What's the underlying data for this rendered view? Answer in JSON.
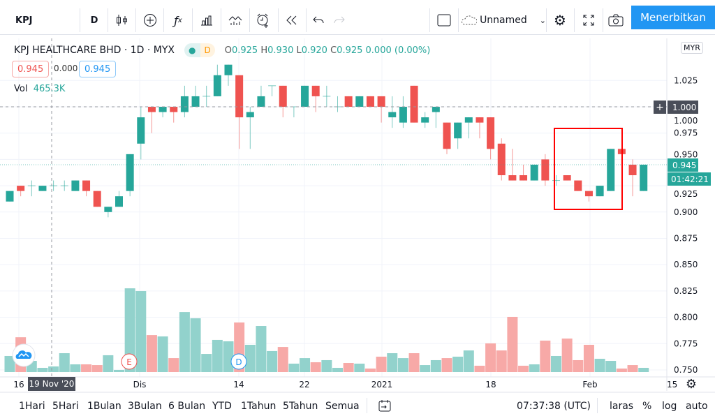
{
  "toolbar": {
    "symbol": "KPJ",
    "interval": "D",
    "icons": [
      "candlestick-icon",
      "add-compare-icon",
      "fx-indicators-icon",
      "bar-chart-icon",
      "templates-icon",
      "alert-icon",
      "replay-icon",
      "undo-icon",
      "redo-icon"
    ],
    "layout_icon": "square-icon",
    "layout_name": "Unnamed",
    "publish": "Menerbitkan"
  },
  "legend": {
    "title": "KPJ HEALTHCARE BHD · 1D · MYX",
    "status_letter": "D",
    "o_label": "O",
    "o": "0.925",
    "h_label": "H",
    "h": "0.930",
    "l_label": "L",
    "l": "0.920",
    "c_label": "C",
    "c": "0.925",
    "change": "0.000 (0.00%)",
    "bid": "0.945",
    "spread": "0.000",
    "ask": "0.945",
    "vol_label": "Vol",
    "vol": "465.3K"
  },
  "price_axis": {
    "currency": "MYR",
    "ticks": [
      "1.025",
      "1.000",
      "0.975",
      "0.950",
      "0.925",
      "0.900",
      "0.875",
      "0.850",
      "0.825",
      "0.800",
      "0.775",
      "0.750"
    ],
    "crosshair_price": "1.000",
    "last_price": "0.945",
    "countdown": "01:42:21"
  },
  "time_axis": {
    "ticks": [
      "16",
      "Dis",
      "14",
      "22",
      "2021",
      "18",
      "Feb",
      "15"
    ],
    "crosshair_date": "19 Nov '20"
  },
  "markers": {
    "earnings": "E",
    "dividend": "D"
  },
  "bottom": {
    "ranges": [
      "1Hari",
      "5Hari",
      "1Bulan",
      "3Bulan",
      "6 Bulan",
      "YTD",
      "1Tahun",
      "5Tahun",
      "Semua"
    ],
    "clock": "07:37:38 (UTC)",
    "options": [
      "laras",
      "%",
      "log",
      "auto"
    ]
  },
  "colors": {
    "up": "#26a69a",
    "down": "#ef5350",
    "up_vol": "#92d2cc",
    "down_vol": "#f7a9a7",
    "accent": "#2196f3",
    "highlight": "#ff0000"
  },
  "chart_data": {
    "type": "candlestick",
    "ylim": [
      0.745,
      1.04
    ],
    "ohlc": [
      [
        0.91,
        0.92,
        0.91,
        0.92
      ],
      [
        0.925,
        0.925,
        0.915,
        0.92
      ],
      [
        0.925,
        0.93,
        0.915,
        0.925
      ],
      [
        0.92,
        0.925,
        0.92,
        0.925
      ],
      [
        0.925,
        0.93,
        0.92,
        0.925
      ],
      [
        0.925,
        0.93,
        0.92,
        0.925
      ],
      [
        0.92,
        0.93,
        0.92,
        0.93
      ],
      [
        0.93,
        0.93,
        0.915,
        0.92
      ],
      [
        0.92,
        0.92,
        0.905,
        0.905
      ],
      [
        0.9,
        0.905,
        0.895,
        0.905
      ],
      [
        0.905,
        0.92,
        0.905,
        0.915
      ],
      [
        0.92,
        0.955,
        0.915,
        0.955
      ],
      [
        0.965,
        1.0,
        0.95,
        0.99
      ],
      [
        1.0,
        1.0,
        0.975,
        0.995
      ],
      [
        0.995,
        1.0,
        0.99,
        1.0
      ],
      [
        1.0,
        1.0,
        0.985,
        0.995
      ],
      [
        0.995,
        1.02,
        0.99,
        1.01
      ],
      [
        1.0,
        1.02,
        1.0,
        1.01
      ],
      [
        1.01,
        1.02,
        1.0,
        1.01
      ],
      [
        1.01,
        1.04,
        1.01,
        1.03
      ],
      [
        1.03,
        1.04,
        1.02,
        1.04
      ],
      [
        1.03,
        1.03,
        0.96,
        0.99
      ],
      [
        0.99,
        1.0,
        0.96,
        0.995
      ],
      [
        1.0,
        1.02,
        1.0,
        1.01
      ],
      [
        1.02,
        1.02,
        1.01,
        1.02
      ],
      [
        1.02,
        1.02,
        0.99,
        1.0
      ],
      [
        1.0,
        1.0,
        0.99,
        1.0
      ],
      [
        1.0,
        1.02,
        1.0,
        1.02
      ],
      [
        1.02,
        1.02,
        0.995,
        1.01
      ],
      [
        1.01,
        1.02,
        1.0,
        1.01
      ],
      [
        1.0,
        1.01,
        0.995,
        1.0
      ],
      [
        1.01,
        1.01,
        1.0,
        1.0
      ],
      [
        1.0,
        1.01,
        1.0,
        1.01
      ],
      [
        1.01,
        1.01,
        1.0,
        1.0
      ],
      [
        1.01,
        1.01,
        0.985,
        1.0
      ],
      [
        0.99,
        1.01,
        0.98,
        0.995
      ],
      [
        0.985,
        1.01,
        0.98,
        1.0
      ],
      [
        1.02,
        1.02,
        0.985,
        0.985
      ],
      [
        0.985,
        0.995,
        0.98,
        0.99
      ],
      [
        0.995,
        1.0,
        0.98,
        1.0
      ],
      [
        0.985,
        0.985,
        0.955,
        0.96
      ],
      [
        0.97,
        0.985,
        0.96,
        0.985
      ],
      [
        0.985,
        0.99,
        0.97,
        0.99
      ],
      [
        0.99,
        0.99,
        0.97,
        0.985
      ],
      [
        0.99,
        0.99,
        0.95,
        0.96
      ],
      [
        0.965,
        0.97,
        0.93,
        0.935
      ],
      [
        0.935,
        0.96,
        0.93,
        0.93
      ],
      [
        0.935,
        0.945,
        0.93,
        0.93
      ],
      [
        0.93,
        0.945,
        0.93,
        0.945
      ],
      [
        0.95,
        0.955,
        0.925,
        0.93
      ],
      [
        0.93,
        0.935,
        0.925,
        0.93
      ],
      [
        0.935,
        0.935,
        0.93,
        0.93
      ],
      [
        0.93,
        0.93,
        0.92,
        0.92
      ],
      [
        0.92,
        0.92,
        0.91,
        0.915
      ],
      [
        0.915,
        0.925,
        0.915,
        0.925
      ],
      [
        0.92,
        0.96,
        0.92,
        0.96
      ],
      [
        0.96,
        0.96,
        0.945,
        0.955
      ],
      [
        0.945,
        0.95,
        0.915,
        0.935
      ],
      [
        0.92,
        0.945,
        0.92,
        0.945
      ]
    ],
    "volume_k": [
      1340,
      2900,
      930,
      350,
      465.3,
      1570,
      640,
      640,
      580,
      1400,
      175,
      6980,
      6750,
      3080,
      2970,
      1160,
      5000,
      4480,
      1510,
      2680,
      2560,
      4130,
      2270,
      3840,
      1750,
      2090,
      700,
      1160,
      815,
      990,
      350,
      755,
      700,
      290,
      1280,
      1570,
      1160,
      1570,
      580,
      990,
      1160,
      1280,
      1800,
      525,
      2390,
      1800,
      4600,
      525,
      640,
      2620,
      1340,
      2790,
      990,
      2270,
      1105,
      930,
      290,
      580,
      350
    ]
  }
}
